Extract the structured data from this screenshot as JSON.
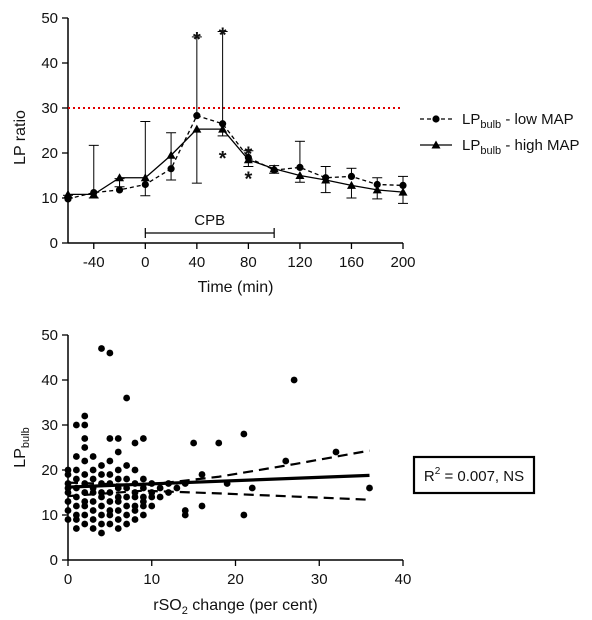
{
  "chart_data": [
    {
      "type": "line",
      "xlabel": "Time (min)",
      "ylabel": "LP ratio",
      "xlim": [
        -60,
        200
      ],
      "ylim": [
        0,
        50
      ],
      "xticks": [
        -40,
        0,
        40,
        80,
        120,
        160,
        200
      ],
      "yticks": [
        0,
        10,
        20,
        30,
        40,
        50
      ],
      "threshold": 30,
      "threshold_color": "#e00000",
      "cpb": {
        "label": "CPB",
        "start": 0,
        "end": 100
      },
      "legend_position": "right",
      "series": [
        {
          "name_main": "LP",
          "name_sub": "bulb",
          "name_suffix": " - low MAP",
          "marker": "circle",
          "dashed": true,
          "x": [
            -60,
            -40,
            -20,
            0,
            20,
            40,
            60,
            80,
            100,
            120,
            140,
            160,
            180,
            200
          ],
          "y": [
            9.8,
            11.2,
            11.8,
            13.0,
            16.5,
            28.3,
            26.5,
            19.0,
            16.2,
            16.8,
            14.5,
            14.8,
            13.0,
            12.8
          ],
          "err_up": [
            0.8,
            10.5,
            2.5,
            14.0,
            8.0,
            17.5,
            20.5,
            1.5,
            1.0,
            5.8,
            2.5,
            1.8,
            1.5,
            2.0
          ]
        },
        {
          "name_main": "LP",
          "name_sub": "bulb",
          "name_suffix": " - high MAP",
          "marker": "triangle",
          "dashed": false,
          "x": [
            -60,
            -40,
            -20,
            0,
            20,
            40,
            60,
            80,
            100,
            120,
            140,
            160,
            180,
            200
          ],
          "y": [
            10.8,
            10.8,
            14.5,
            14.5,
            19.5,
            25.3,
            25.3,
            18.5,
            16.5,
            15.0,
            14.0,
            12.8,
            11.8,
            11.3
          ],
          "err_down": [
            0.8,
            0.8,
            2.0,
            4.0,
            5.5,
            12.0,
            1.5,
            1.5,
            1.0,
            1.5,
            2.8,
            2.8,
            2.0,
            2.5
          ]
        }
      ],
      "annotations": [
        {
          "text": "*",
          "x": 40,
          "y": 46.5
        },
        {
          "text": "*",
          "x": 60,
          "y": 47.5
        },
        {
          "text": "*",
          "x": 60,
          "y": 20.0
        },
        {
          "text": "*",
          "x": 80,
          "y": 21.0
        },
        {
          "text": "*",
          "x": 80,
          "y": 15.5
        }
      ]
    },
    {
      "type": "scatter",
      "xlabel_main": "rSO",
      "xlabel_sub": "2",
      "xlabel_suffix": " change (per cent)",
      "ylabel_main": "LP",
      "ylabel_sub": "bulb",
      "xlim": [
        0,
        40
      ],
      "ylim": [
        0,
        50
      ],
      "xticks": [
        0,
        10,
        20,
        30,
        40
      ],
      "yticks": [
        0,
        10,
        20,
        30,
        40,
        50
      ],
      "fit": {
        "x": [
          0,
          36
        ],
        "y": [
          16.2,
          18.8
        ]
      },
      "ci_upper": {
        "x": [
          0,
          9,
          18,
          27,
          36
        ],
        "y": [
          17.2,
          16.6,
          18.5,
          21.3,
          24.3
        ]
      },
      "ci_lower": {
        "x": [
          0,
          9,
          18,
          27,
          36
        ],
        "y": [
          14.2,
          15.4,
          14.8,
          14.1,
          13.4
        ]
      },
      "annotation": {
        "r2_main": "R",
        "r2_sup": "2",
        "r2_rest": " = 0.007, NS"
      },
      "points": [
        [
          0,
          9
        ],
        [
          0,
          11
        ],
        [
          0,
          13
        ],
        [
          0,
          15
        ],
        [
          0,
          16
        ],
        [
          0,
          17
        ],
        [
          0,
          19
        ],
        [
          0,
          20
        ],
        [
          1,
          7
        ],
        [
          1,
          9
        ],
        [
          1,
          10
        ],
        [
          1,
          12
        ],
        [
          1,
          14
        ],
        [
          1,
          16
        ],
        [
          1,
          18
        ],
        [
          1,
          20
        ],
        [
          1,
          23
        ],
        [
          1,
          30
        ],
        [
          2,
          8
        ],
        [
          2,
          10
        ],
        [
          2,
          12
        ],
        [
          2,
          13
        ],
        [
          2,
          15
        ],
        [
          2,
          17
        ],
        [
          2,
          19
        ],
        [
          2,
          22
        ],
        [
          2,
          25
        ],
        [
          2,
          27
        ],
        [
          2,
          30
        ],
        [
          2,
          32
        ],
        [
          3,
          7
        ],
        [
          3,
          9
        ],
        [
          3,
          11
        ],
        [
          3,
          13
        ],
        [
          3,
          15
        ],
        [
          3,
          16
        ],
        [
          3,
          18
        ],
        [
          3,
          20
        ],
        [
          3,
          23
        ],
        [
          4,
          6
        ],
        [
          4,
          8
        ],
        [
          4,
          10
        ],
        [
          4,
          12
        ],
        [
          4,
          14
        ],
        [
          4,
          15
        ],
        [
          4,
          17
        ],
        [
          4,
          19
        ],
        [
          4,
          21
        ],
        [
          4,
          47
        ],
        [
          5,
          8
        ],
        [
          5,
          10
        ],
        [
          5,
          11
        ],
        [
          5,
          13
        ],
        [
          5,
          15
        ],
        [
          5,
          17
        ],
        [
          5,
          19
        ],
        [
          5,
          22
        ],
        [
          5,
          27
        ],
        [
          5,
          46
        ],
        [
          6,
          7
        ],
        [
          6,
          9
        ],
        [
          6,
          11
        ],
        [
          6,
          13
        ],
        [
          6,
          14
        ],
        [
          6,
          16
        ],
        [
          6,
          18
        ],
        [
          6,
          20
        ],
        [
          6,
          24
        ],
        [
          6,
          27
        ],
        [
          7,
          8
        ],
        [
          7,
          10
        ],
        [
          7,
          12
        ],
        [
          7,
          14
        ],
        [
          7,
          16
        ],
        [
          7,
          18
        ],
        [
          7,
          21
        ],
        [
          7,
          36
        ],
        [
          8,
          9
        ],
        [
          8,
          11
        ],
        [
          8,
          12
        ],
        [
          8,
          14
        ],
        [
          8,
          15
        ],
        [
          8,
          17
        ],
        [
          8,
          20
        ],
        [
          8,
          26
        ],
        [
          9,
          10
        ],
        [
          9,
          12
        ],
        [
          9,
          13
        ],
        [
          9,
          14
        ],
        [
          9,
          16
        ],
        [
          9,
          18
        ],
        [
          9,
          27
        ],
        [
          10,
          12
        ],
        [
          10,
          14
        ],
        [
          10,
          15
        ],
        [
          10,
          17
        ],
        [
          11,
          14
        ],
        [
          11,
          16
        ],
        [
          12,
          15
        ],
        [
          12,
          17
        ],
        [
          13,
          16
        ],
        [
          14,
          10
        ],
        [
          14,
          11
        ],
        [
          14,
          17
        ],
        [
          15,
          26
        ],
        [
          16,
          12
        ],
        [
          16,
          19
        ],
        [
          18,
          26
        ],
        [
          19,
          17
        ],
        [
          21,
          10
        ],
        [
          21,
          28
        ],
        [
          22,
          16
        ],
        [
          26,
          22
        ],
        [
          27,
          40
        ],
        [
          32,
          24
        ],
        [
          36,
          16
        ]
      ]
    }
  ]
}
